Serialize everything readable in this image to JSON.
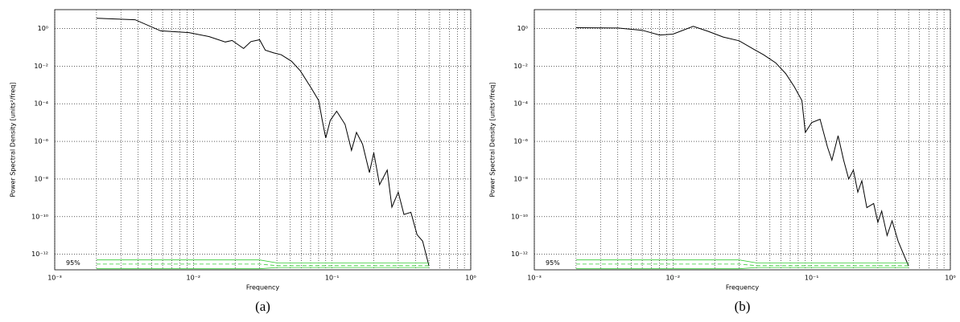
{
  "chart_data": [
    {
      "type": "line",
      "caption": "(a)",
      "xlabel": "Frequency",
      "ylabel": "Power Spectral Density [units²/freq]",
      "xscale": "log",
      "yscale": "log",
      "grid": true,
      "xlim": [
        0.001,
        1
      ],
      "ylim": [
        1.5e-13,
        10
      ],
      "xticks": [
        {
          "value": 0.001,
          "label": "10⁻³"
        },
        {
          "value": 0.01,
          "label": "10⁻²"
        },
        {
          "value": 0.1,
          "label": "10⁻¹"
        },
        {
          "value": 1,
          "label": "10⁰"
        }
      ],
      "xminorticks": [
        0.002,
        0.003,
        0.004,
        0.005,
        0.006,
        0.007,
        0.008,
        0.009,
        0.02,
        0.03,
        0.04,
        0.05,
        0.06,
        0.07,
        0.08,
        0.09,
        0.2,
        0.3,
        0.4,
        0.5,
        0.6,
        0.7,
        0.8,
        0.9
      ],
      "yticks": [
        {
          "value": 1,
          "label": "10⁰"
        },
        {
          "value": 0.01,
          "label": "10⁻²"
        },
        {
          "value": 0.0001,
          "label": "10⁻⁴"
        },
        {
          "value": 1e-06,
          "label": "10⁻⁶"
        },
        {
          "value": 1e-08,
          "label": "10⁻⁸"
        },
        {
          "value": 1e-10,
          "label": "10⁻¹⁰"
        },
        {
          "value": 1e-12,
          "label": "10⁻¹²"
        }
      ],
      "annotations": [
        {
          "text": "95%"
        }
      ],
      "series": [
        {
          "color": "#000000",
          "linestyle": "solid",
          "x": [
            0.002,
            0.0038,
            0.0058,
            0.0093,
            0.013,
            0.017,
            0.019,
            0.023,
            0.026,
            0.03,
            0.033,
            0.038,
            0.043,
            0.051,
            0.059,
            0.07,
            0.08,
            0.085,
            0.09,
            0.097,
            0.108,
            0.124,
            0.138,
            0.15,
            0.166,
            0.186,
            0.2,
            0.22,
            0.25,
            0.27,
            0.3,
            0.33,
            0.37,
            0.41,
            0.45,
            0.5
          ],
          "values": [
            3.5,
            2.9,
            0.75,
            0.6,
            0.37,
            0.19,
            0.23,
            0.086,
            0.2,
            0.25,
            0.07,
            0.05,
            0.04,
            0.018,
            0.0056,
            0.00077,
            0.00015,
            1.3e-05,
            1.5e-06,
            1.3e-05,
            4e-05,
            8e-06,
            3.3e-07,
            3e-06,
            7e-07,
            2.2e-08,
            2.5e-07,
            5e-09,
            3e-08,
            3.2e-10,
            2e-09,
            1.3e-10,
            1.7e-10,
            1.1e-11,
            5e-12,
            2.4e-13
          ]
        },
        {
          "color": "#33cc33",
          "linestyle": "solid",
          "x": [
            0.002,
            0.03,
            0.04,
            0.5
          ],
          "values": [
            5e-13,
            5e-13,
            3.5e-13,
            3.5e-13
          ]
        },
        {
          "color": "#33cc33",
          "linestyle": "dashed",
          "x": [
            0.002,
            0.03,
            0.04,
            0.5
          ],
          "values": [
            3e-13,
            3e-13,
            2.5e-13,
            2.5e-13
          ]
        },
        {
          "color": "#33cc33",
          "linestyle": "solid",
          "x": [
            0.002,
            0.03,
            0.04,
            0.5
          ],
          "values": [
            1.7e-13,
            1.7e-13,
            2e-13,
            2e-13
          ]
        }
      ]
    },
    {
      "type": "line",
      "caption": "(b)",
      "xlabel": "Frequency",
      "ylabel": "Power Spectral Density [units²/freq]",
      "xscale": "log",
      "yscale": "log",
      "grid": true,
      "xlim": [
        0.001,
        1
      ],
      "ylim": [
        1.5e-13,
        10
      ],
      "xticks": [
        {
          "value": 0.001,
          "label": "10⁻³"
        },
        {
          "value": 0.01,
          "label": "10⁻²"
        },
        {
          "value": 0.1,
          "label": "10⁻¹"
        },
        {
          "value": 1,
          "label": "10⁰"
        }
      ],
      "xminorticks": [
        0.002,
        0.003,
        0.004,
        0.005,
        0.006,
        0.007,
        0.008,
        0.009,
        0.02,
        0.03,
        0.04,
        0.05,
        0.06,
        0.07,
        0.08,
        0.09,
        0.2,
        0.3,
        0.4,
        0.5,
        0.6,
        0.7,
        0.8,
        0.9
      ],
      "yticks": [
        {
          "value": 1,
          "label": "10⁰"
        },
        {
          "value": 0.01,
          "label": "10⁻²"
        },
        {
          "value": 0.0001,
          "label": "10⁻⁴"
        },
        {
          "value": 1e-06,
          "label": "10⁻⁶"
        },
        {
          "value": 1e-08,
          "label": "10⁻⁸"
        },
        {
          "value": 1e-10,
          "label": "10⁻¹⁰"
        },
        {
          "value": 1e-12,
          "label": "10⁻¹²"
        }
      ],
      "annotations": [
        {
          "text": "95%"
        }
      ],
      "series": [
        {
          "color": "#000000",
          "linestyle": "solid",
          "x": [
            0.002,
            0.004,
            0.006,
            0.008,
            0.01,
            0.014,
            0.018,
            0.023,
            0.03,
            0.038,
            0.045,
            0.055,
            0.065,
            0.075,
            0.085,
            0.09,
            0.1,
            0.115,
            0.13,
            0.14,
            0.155,
            0.17,
            0.185,
            0.2,
            0.215,
            0.23,
            0.25,
            0.28,
            0.3,
            0.32,
            0.35,
            0.38,
            0.42,
            0.46,
            0.5
          ],
          "values": [
            1.1,
            1.05,
            0.8,
            0.45,
            0.5,
            1.3,
            0.7,
            0.35,
            0.22,
            0.08,
            0.04,
            0.015,
            0.004,
            0.0008,
            0.00015,
            3e-06,
            1e-05,
            1.5e-05,
            5e-07,
            1e-07,
            2e-06,
            1e-07,
            1e-08,
            3e-08,
            2e-09,
            8e-09,
            3e-10,
            5e-10,
            5e-11,
            2e-10,
            1e-11,
            6e-11,
            5e-12,
            1e-12,
            2.4e-13
          ]
        },
        {
          "color": "#33cc33",
          "linestyle": "solid",
          "x": [
            0.002,
            0.03,
            0.04,
            0.5
          ],
          "values": [
            5e-13,
            5e-13,
            3.5e-13,
            3.5e-13
          ]
        },
        {
          "color": "#33cc33",
          "linestyle": "dashed",
          "x": [
            0.002,
            0.03,
            0.04,
            0.5
          ],
          "values": [
            3e-13,
            3e-13,
            2.5e-13,
            2.5e-13
          ]
        },
        {
          "color": "#33cc33",
          "linestyle": "solid",
          "x": [
            0.002,
            0.03,
            0.04,
            0.5
          ],
          "values": [
            1.7e-13,
            1.7e-13,
            2e-13,
            2e-13
          ]
        }
      ]
    }
  ]
}
